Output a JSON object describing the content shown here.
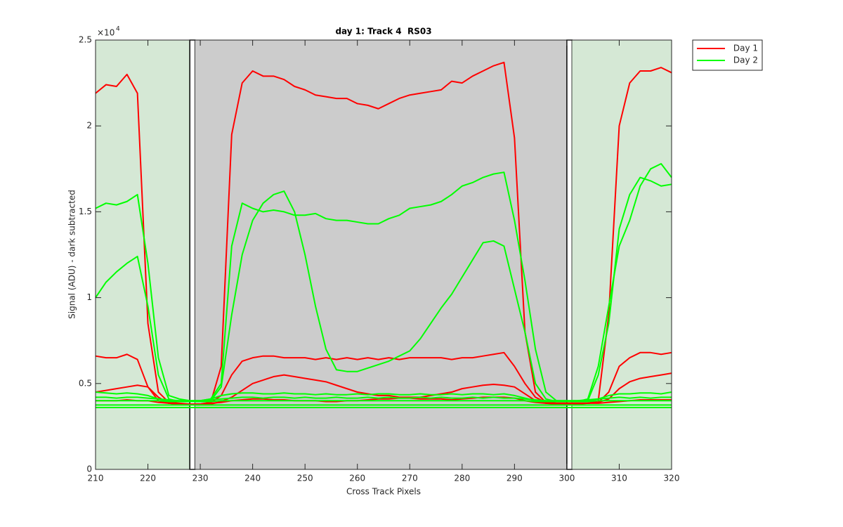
{
  "chart_data": {
    "type": "line",
    "title": "day 1: Track 4  RS03",
    "xlabel": "Cross Track Pixels",
    "ylabel": "Signal (ADU) - dark subtracted",
    "y_exponent": {
      "base": "×10",
      "power": 4
    },
    "xlim": [
      210,
      320
    ],
    "ylim": [
      0,
      25000
    ],
    "xticks": [
      210,
      220,
      230,
      240,
      250,
      260,
      270,
      280,
      290,
      300,
      310,
      320
    ],
    "yticks": [
      0,
      {
        "value": 5000,
        "label": "0.5"
      },
      {
        "value": 10000,
        "label": "1"
      },
      {
        "value": 15000,
        "label": "1.5"
      },
      {
        "value": 20000,
        "label": "2"
      },
      {
        "value": 25000,
        "label": "2.5"
      }
    ],
    "grid": false,
    "legend": "outside-top-right",
    "regions": [
      {
        "x": [
          210,
          228
        ],
        "color": "#d5e8d5"
      },
      {
        "x": [
          228,
          229
        ],
        "color": "#ffffff",
        "edgecolor": "#000000"
      },
      {
        "x": [
          229,
          300
        ],
        "color": "#cccccc"
      },
      {
        "x": [
          300,
          301
        ],
        "color": "#ffffff",
        "edgecolor": "#000000"
      },
      {
        "x": [
          301,
          320
        ],
        "color": "#d5e8d5"
      }
    ],
    "x": [
      210,
      212,
      214,
      216,
      218,
      220,
      222,
      224,
      226,
      228,
      230,
      232,
      234,
      236,
      238,
      240,
      242,
      244,
      246,
      248,
      250,
      252,
      254,
      256,
      258,
      260,
      262,
      264,
      266,
      268,
      270,
      272,
      274,
      276,
      278,
      280,
      282,
      284,
      286,
      288,
      290,
      292,
      294,
      296,
      298,
      300,
      302,
      304,
      306,
      308,
      310,
      312,
      314,
      316,
      318,
      320
    ],
    "series": [
      {
        "name": "Day 1",
        "color": "#ff0000",
        "lines": [
          [
            21900,
            22400,
            22300,
            23000,
            21900,
            8500,
            4500,
            3900,
            3850,
            3800,
            3800,
            3900,
            6000,
            19500,
            22500,
            23200,
            22900,
            22900,
            22700,
            22300,
            22100,
            21800,
            21700,
            21600,
            21600,
            21300,
            21200,
            21000,
            21300,
            21600,
            21800,
            21900,
            22000,
            22100,
            22600,
            22500,
            22900,
            23200,
            23500,
            23700,
            19300,
            8000,
            4500,
            3900,
            3850,
            3850,
            3850,
            3850,
            4000,
            9000,
            20000,
            22500,
            23200,
            23200,
            23400,
            23100
          ],
          [
            6600,
            6500,
            6500,
            6700,
            6400,
            4800,
            4000,
            3850,
            3800,
            3800,
            3800,
            3900,
            4300,
            5500,
            6300,
            6500,
            6600,
            6600,
            6500,
            6500,
            6500,
            6400,
            6500,
            6400,
            6500,
            6400,
            6500,
            6400,
            6500,
            6400,
            6500,
            6500,
            6500,
            6500,
            6400,
            6500,
            6500,
            6600,
            6700,
            6800,
            6000,
            5000,
            4200,
            3900,
            3850,
            3850,
            3850,
            3850,
            3900,
            4500,
            6000,
            6500,
            6800,
            6800,
            6700,
            6800
          ],
          [
            4500,
            4600,
            4700,
            4800,
            4900,
            4800,
            4200,
            3850,
            3800,
            3800,
            3800,
            3800,
            3950,
            4200,
            4600,
            5000,
            5200,
            5400,
            5500,
            5400,
            5300,
            5200,
            5100,
            4900,
            4700,
            4500,
            4400,
            4300,
            4300,
            4200,
            4200,
            4200,
            4300,
            4400,
            4500,
            4700,
            4800,
            4900,
            4950,
            4900,
            4800,
            4400,
            4000,
            3850,
            3800,
            3800,
            3800,
            3850,
            3900,
            4100,
            4700,
            5100,
            5300,
            5400,
            5500,
            5600
          ],
          [
            4000,
            4000,
            4000,
            4050,
            4000,
            4000,
            3900,
            3850,
            3800,
            3800,
            3800,
            3850,
            3900,
            4000,
            4050,
            4100,
            4100,
            4050,
            4050,
            4000,
            4000,
            4000,
            3950,
            3950,
            4000,
            4000,
            4050,
            4100,
            4100,
            4150,
            4150,
            4100,
            4100,
            4100,
            4050,
            4100,
            4150,
            4200,
            4200,
            4200,
            4150,
            4000,
            3900,
            3850,
            3850,
            3850,
            3850,
            3850,
            3850,
            3900,
            3950,
            4000,
            4050,
            4050,
            4050,
            4050
          ]
        ]
      },
      {
        "name": "Day 2",
        "color": "#00ff00",
        "lines": [
          [
            15200,
            15500,
            15400,
            15600,
            16000,
            12000,
            6500,
            4300,
            4100,
            4000,
            4000,
            4100,
            5000,
            13000,
            15500,
            15200,
            15000,
            15100,
            15000,
            14800,
            14800,
            14900,
            14600,
            14500,
            14500,
            14400,
            14300,
            14300,
            14600,
            14800,
            15200,
            15300,
            15400,
            15600,
            16000,
            16500,
            16700,
            17000,
            17200,
            17300,
            14500,
            11000,
            7000,
            4500,
            4000,
            3950,
            3950,
            4000,
            5500,
            8500,
            14000,
            16000,
            17000,
            16800,
            16500,
            16600
          ],
          [
            10000,
            10900,
            11500,
            12000,
            12400,
            9500,
            5500,
            4100,
            3950,
            3950,
            3950,
            4000,
            4800,
            9000,
            12500,
            14500,
            15500,
            16000,
            16200,
            15000,
            12500,
            9500,
            7000,
            5800,
            5700,
            5700,
            5900,
            6100,
            6300,
            6600,
            6900,
            7600,
            8500,
            9400,
            10200,
            11200,
            12200,
            13200,
            13300,
            13000,
            10500,
            8000,
            5000,
            4100,
            3950,
            3950,
            3950,
            4100,
            6000,
            9500,
            13000,
            14500,
            16500,
            17500,
            17800,
            17000
          ],
          [
            4500,
            4450,
            4400,
            4450,
            4400,
            4300,
            4100,
            4000,
            4000,
            4000,
            4000,
            4100,
            4300,
            4400,
            4450,
            4450,
            4400,
            4400,
            4450,
            4400,
            4400,
            4350,
            4400,
            4350,
            4350,
            4400,
            4350,
            4400,
            4400,
            4350,
            4350,
            4400,
            4350,
            4350,
            4400,
            4350,
            4400,
            4400,
            4350,
            4400,
            4300,
            4150,
            4000,
            4000,
            4000,
            4000,
            4000,
            4000,
            4100,
            4300,
            4400,
            4400,
            4450,
            4450,
            4400,
            4500
          ],
          [
            4200,
            4200,
            4150,
            4200,
            4200,
            4150,
            4100,
            4050,
            4000,
            4000,
            4000,
            4050,
            4100,
            4150,
            4200,
            4200,
            4150,
            4200,
            4200,
            4150,
            4200,
            4150,
            4150,
            4200,
            4150,
            4150,
            4200,
            4150,
            4200,
            4150,
            4150,
            4200,
            4150,
            4200,
            4150,
            4150,
            4200,
            4150,
            4200,
            4150,
            4150,
            4100,
            4050,
            4000,
            4000,
            4000,
            4000,
            4050,
            4100,
            4150,
            4200,
            4150,
            4200,
            4150,
            4200,
            4200
          ],
          [
            4000,
            4000,
            4000,
            4000,
            4000,
            4000,
            4000,
            3950,
            3950,
            3950,
            3950,
            3950,
            4000,
            4000,
            4000,
            4000,
            4000,
            4000,
            4000,
            4000,
            4000,
            4000,
            4000,
            4000,
            4000,
            4000,
            4000,
            4000,
            4000,
            4000,
            4000,
            4000,
            4000,
            4000,
            4000,
            4000,
            4000,
            4000,
            4000,
            4000,
            4000,
            4000,
            3950,
            3950,
            3950,
            3950,
            3950,
            3950,
            4000,
            4000,
            4000,
            4000,
            4000,
            4000,
            4000,
            4000
          ],
          [
            3750,
            3750,
            3750,
            3750,
            3750,
            3750,
            3750,
            3750,
            3750,
            3750,
            3750,
            3750,
            3750,
            3750,
            3750,
            3750,
            3750,
            3750,
            3750,
            3750,
            3750,
            3750,
            3750,
            3750,
            3750,
            3750,
            3750,
            3750,
            3750,
            3750,
            3750,
            3750,
            3750,
            3750,
            3750,
            3750,
            3750,
            3750,
            3750,
            3750,
            3750,
            3750,
            3750,
            3750,
            3750,
            3750,
            3750,
            3750,
            3750,
            3750,
            3750,
            3750,
            3750,
            3750,
            3750,
            3750
          ],
          [
            3600,
            3600,
            3600,
            3600,
            3600,
            3600,
            3600,
            3600,
            3600,
            3600,
            3600,
            3600,
            3600,
            3600,
            3600,
            3600,
            3600,
            3600,
            3600,
            3600,
            3600,
            3600,
            3600,
            3600,
            3600,
            3600,
            3600,
            3600,
            3600,
            3600,
            3600,
            3600,
            3600,
            3600,
            3600,
            3600,
            3600,
            3600,
            3600,
            3600,
            3600,
            3600,
            3600,
            3600,
            3600,
            3600,
            3600,
            3600,
            3600,
            3600,
            3600,
            3600,
            3600,
            3600,
            3600,
            3600
          ]
        ]
      }
    ]
  }
}
